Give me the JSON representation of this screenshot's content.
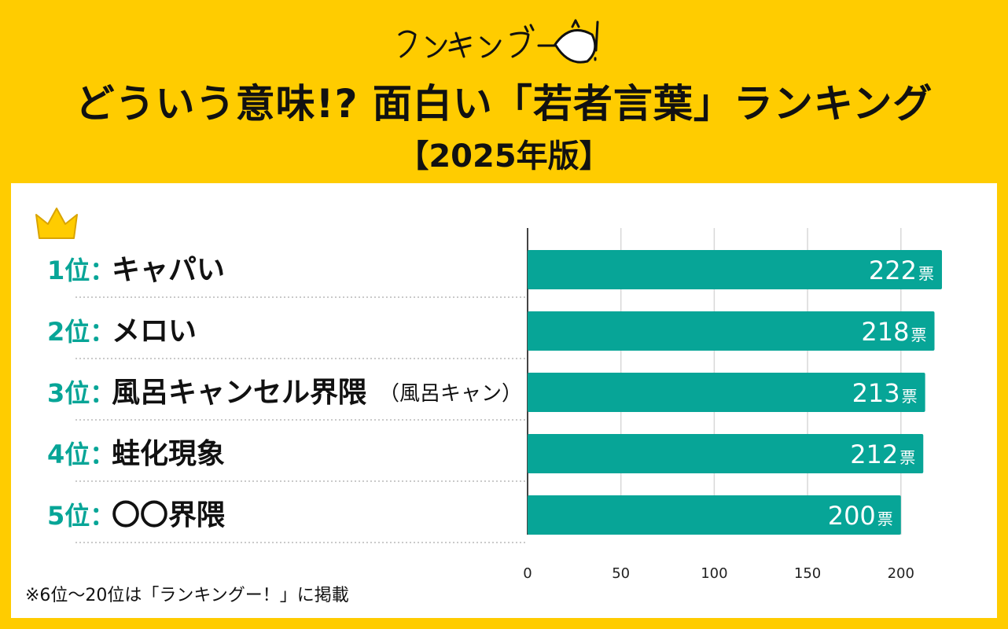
{
  "header": {
    "logo_text": "ランキングー!",
    "title": "どういう意味!? 面白い「若者言葉」ランキング",
    "subtitle": "【2025年版】"
  },
  "note": "※6位〜20位は「ランキングー！」に掲載",
  "colors": {
    "background": "#ffcc00",
    "bar": "#07a597",
    "rank": "#07a597",
    "crown": "#ffcc00"
  },
  "chart_data": {
    "type": "bar",
    "orientation": "horizontal",
    "ranks": [
      "1位：",
      "2位：",
      "3位：",
      "4位：",
      "5位："
    ],
    "categories": [
      "キャパい",
      "メロい",
      "風呂キャンセル界隈",
      "蛙化現象",
      "〇〇界隈"
    ],
    "category_notes": [
      "",
      "",
      "（風呂キャン）",
      "",
      ""
    ],
    "values": [
      222,
      218,
      213,
      212,
      200
    ],
    "value_unit": "票",
    "xticks": [
      0,
      50,
      100,
      150,
      200
    ],
    "xlim": [
      0,
      230
    ],
    "grid": true
  }
}
